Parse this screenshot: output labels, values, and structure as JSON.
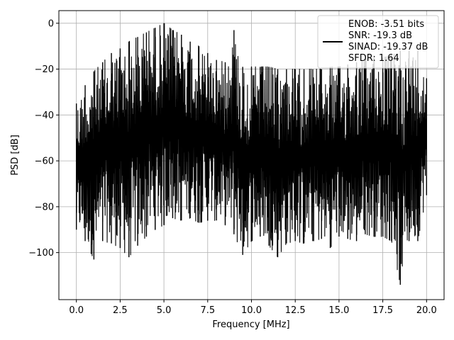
{
  "chart_data": {
    "type": "line",
    "title": "",
    "xlabel": "Frequency [MHz]",
    "ylabel": "PSD [dB]",
    "xlim": [
      -1.0,
      21.0
    ],
    "ylim": [
      -120.5,
      5.5
    ],
    "xticks": [
      0.0,
      2.5,
      5.0,
      7.5,
      10.0,
      12.5,
      15.0,
      17.5,
      20.0
    ],
    "xtick_labels": [
      "0.0",
      "2.5",
      "5.0",
      "7.5",
      "10.0",
      "12.5",
      "15.0",
      "17.5",
      "20.0"
    ],
    "yticks": [
      0,
      -20,
      -40,
      -60,
      -80,
      -100
    ],
    "ytick_labels": [
      "0",
      "−20",
      "−40",
      "−60",
      "−80",
      "−100"
    ],
    "grid": true,
    "legend_position": "top-right",
    "legend_entries": [
      "ENOB: -3.51 bits",
      "SNR: -19.3 dB",
      "SINAD: -19.37 dB",
      "SFDR: 1.64"
    ],
    "series_color": "#000000",
    "series": [
      {
        "x": [
          0.0,
          0.5,
          1.0,
          1.5,
          2.0,
          2.5,
          3.0,
          3.5,
          4.0,
          4.5,
          5.0,
          5.5,
          6.0,
          6.5,
          7.0,
          7.5,
          8.0,
          8.5,
          9.0,
          9.5,
          10.0,
          10.5,
          11.0,
          11.5,
          12.0,
          12.5,
          13.0,
          13.5,
          14.0,
          14.5,
          15.0,
          15.5,
          16.0,
          16.5,
          17.0,
          17.5,
          18.0,
          18.5,
          19.0,
          19.5,
          20.0
        ],
        "y_max": [
          -35,
          -27,
          -21,
          -17,
          -13,
          -11,
          -8,
          -6,
          -4,
          -2,
          0,
          -3,
          -5,
          -8,
          -10,
          -13,
          -16,
          -17,
          -3,
          -19,
          -19,
          -19,
          -19,
          -20,
          -20,
          -20,
          -20,
          -20,
          -20,
          -19,
          -19,
          -18,
          -17,
          -16,
          -15,
          -15,
          -14,
          -12,
          -12,
          -12,
          -24
        ],
        "y_min": [
          -90,
          -95,
          -103,
          -95,
          -96,
          -98,
          -102,
          -97,
          -93,
          -90,
          -88,
          -85,
          -86,
          -85,
          -87,
          -86,
          -86,
          -88,
          -92,
          -101,
          -95,
          -93,
          -97,
          -102,
          -96,
          -95,
          -96,
          -95,
          -94,
          -98,
          -93,
          -94,
          -95,
          -92,
          -93,
          -93,
          -95,
          -114,
          -95,
          -95,
          -75
        ]
      }
    ]
  }
}
